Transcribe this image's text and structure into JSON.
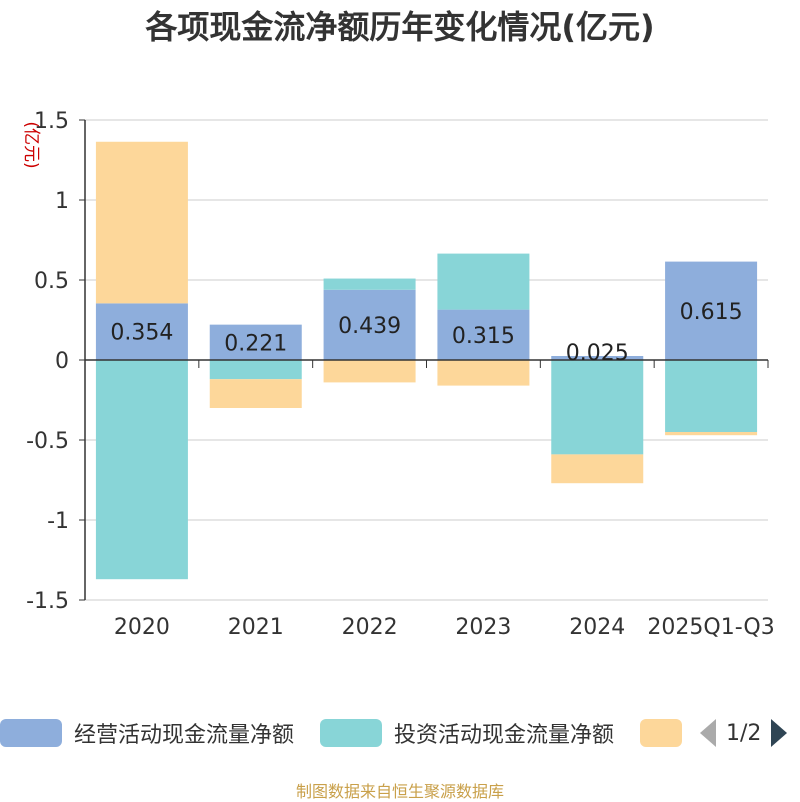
{
  "chart_data": {
    "type": "bar",
    "stacked": true,
    "title": "各项现金流净额历年变化情况(亿元)",
    "ylabel": "(亿元)",
    "ylim": [
      -1.5,
      1.5
    ],
    "yticks": [
      1.5,
      1,
      0.5,
      0,
      -0.5,
      -1,
      -1.5
    ],
    "ytick_labels": [
      "1.5",
      "1",
      "0.5",
      "0",
      "-0.5",
      "-1",
      "-1.5"
    ],
    "categories": [
      "2020",
      "2021",
      "2022",
      "2023",
      "2024",
      "2025Q1-Q3"
    ],
    "series": [
      {
        "name": "经营活动现金流量净额",
        "color": "#8eaedc",
        "values": [
          0.354,
          0.221,
          0.439,
          0.315,
          0.025,
          0.615
        ],
        "labels": [
          "0.354",
          "0.221",
          "0.439",
          "0.315",
          "0.025",
          "0.615"
        ]
      },
      {
        "name": "投资活动现金流量净额",
        "color": "#88d5d7",
        "values": [
          -1.37,
          -0.12,
          0.07,
          0.35,
          -0.59,
          -0.45
        ]
      },
      {
        "name": "",
        "color": "#fdd79a",
        "values": [
          1.01,
          -0.18,
          -0.14,
          -0.16,
          -0.18,
          -0.02
        ]
      }
    ],
    "grid": true,
    "legend_position": "bottom"
  },
  "legend": {
    "items": [
      {
        "label": "经营活动现金流量净额",
        "color": "#8eaedc"
      },
      {
        "label": "投资活动现金流量净额",
        "color": "#88d5d7"
      },
      {
        "label": "",
        "color": "#fdd79a"
      }
    ],
    "page": "1/2"
  },
  "source": "制图数据来自恒生聚源数据库"
}
